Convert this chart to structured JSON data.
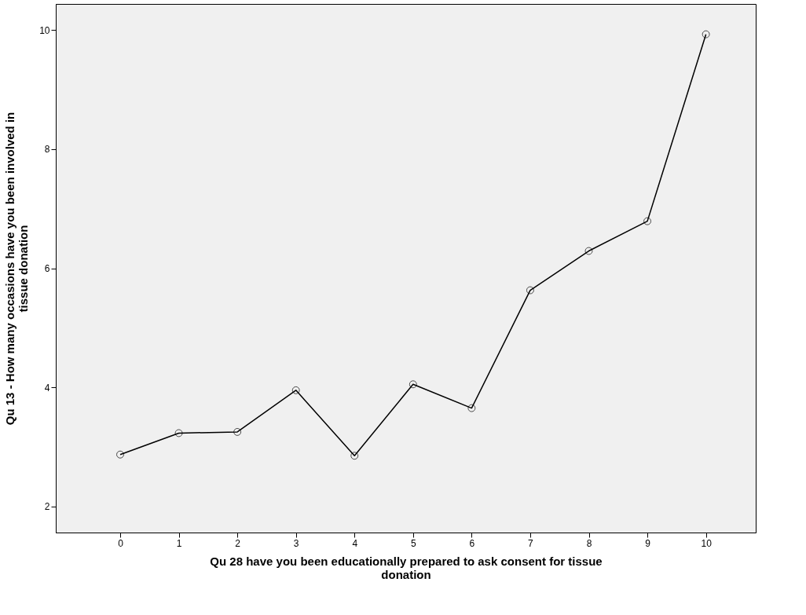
{
  "chart_data": {
    "type": "line",
    "xlabel": "Qu 28 have you been educationally prepared to ask consent for tissue donation",
    "ylabel": "Qu 13 - How many occasions have you been involved in tissue donation",
    "x": [
      0,
      1,
      2,
      3,
      4,
      5,
      6,
      7,
      8,
      9,
      10
    ],
    "series": [
      {
        "color": "#000000",
        "values": [
          2.87,
          3.23,
          3.25,
          3.95,
          2.85,
          4.05,
          3.65,
          5.63,
          6.29,
          6.79,
          9.93
        ]
      }
    ],
    "xlim": [
      -1.1,
      10.85
    ],
    "ylim": [
      1.56,
      10.44
    ],
    "xticks": [
      0,
      1,
      2,
      3,
      4,
      5,
      6,
      7,
      8,
      9,
      10
    ],
    "yticks": [
      2,
      4,
      6,
      8,
      10
    ],
    "grid": false,
    "marker": "circle",
    "line_style": "solid"
  }
}
